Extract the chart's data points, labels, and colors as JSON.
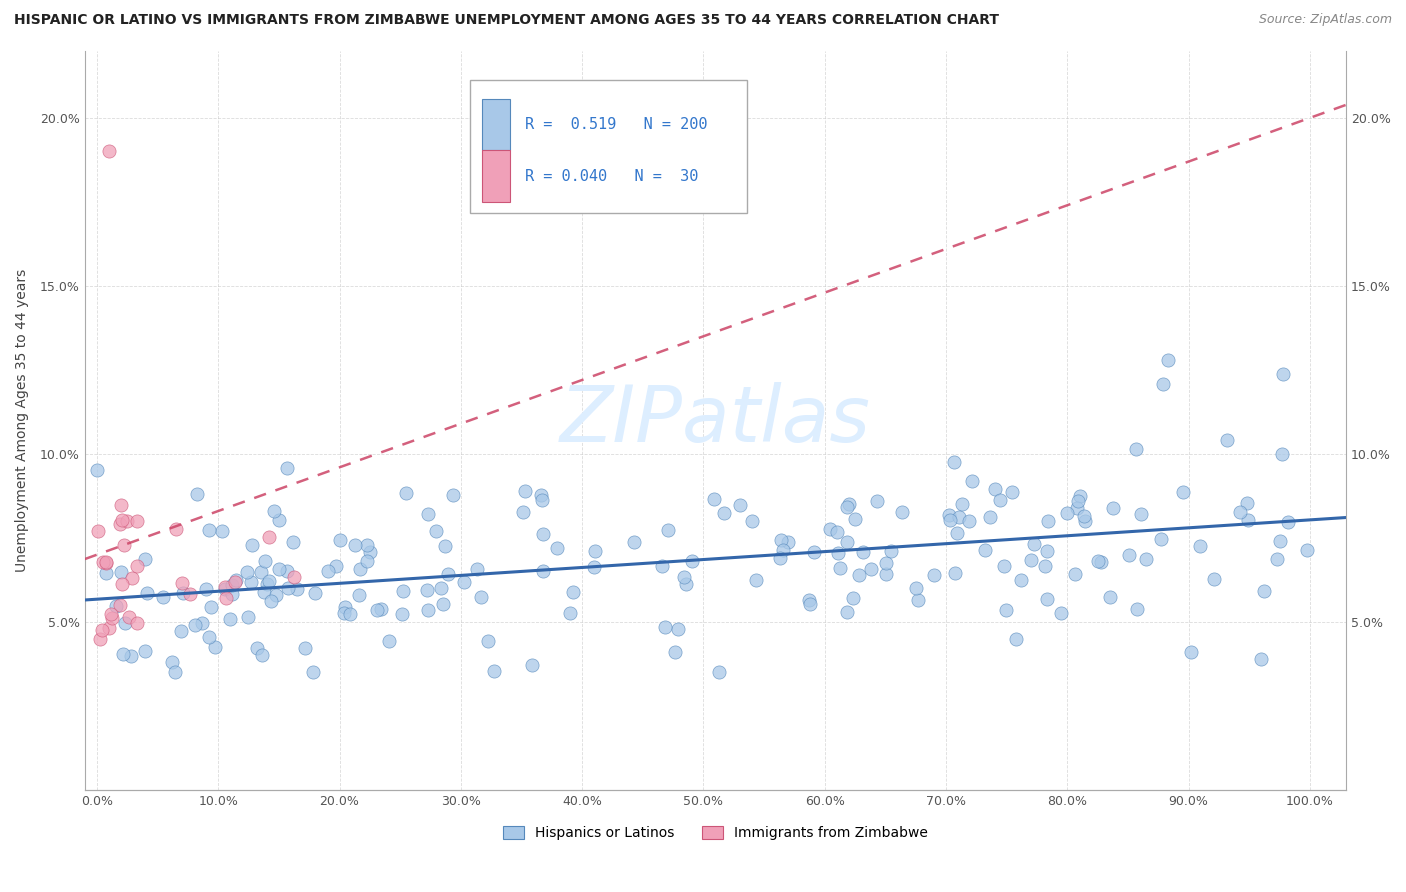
{
  "title": "HISPANIC OR LATINO VS IMMIGRANTS FROM ZIMBABWE UNEMPLOYMENT AMONG AGES 35 TO 44 YEARS CORRELATION CHART",
  "source": "Source: ZipAtlas.com",
  "ylabel": "Unemployment Among Ages 35 to 44 years",
  "legend1_label": "Hispanics or Latinos",
  "legend2_label": "Immigrants from Zimbabwe",
  "r1": 0.519,
  "n1": 200,
  "r2": 0.04,
  "n2": 30,
  "blue_fill": "#a8c8e8",
  "blue_edge": "#5588bb",
  "pink_fill": "#f0a0b8",
  "pink_edge": "#cc5577",
  "blue_line": "#3366aa",
  "pink_line": "#cc4466",
  "watermark_color": "#e0e8f0",
  "grid_color": "#cccccc",
  "title_color": "#222222",
  "source_color": "#888888",
  "ylabel_color": "#444444",
  "tick_color": "#555555",
  "legend_text_color": "#3377cc"
}
